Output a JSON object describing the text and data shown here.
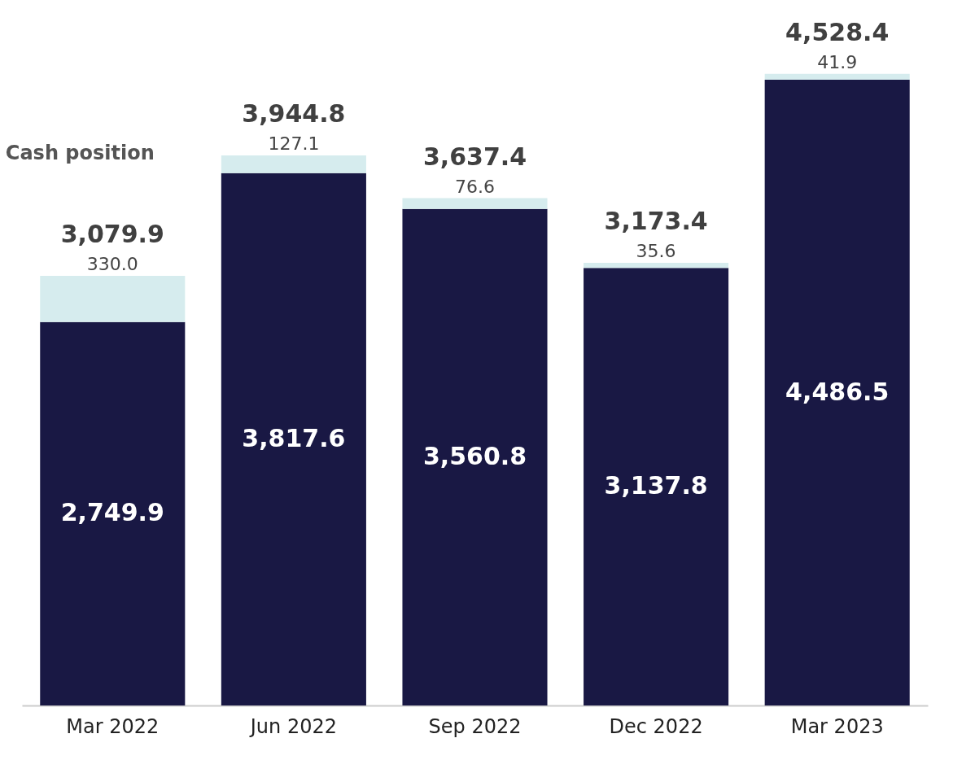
{
  "chart_data": {
    "type": "bar",
    "stacked": true,
    "categories": [
      "Mar 2022",
      "Jun 2022",
      "Sep 2022",
      "Dec 2022",
      "Mar 2023"
    ],
    "series": [
      {
        "color": "#191844",
        "values": [
          2749.9,
          3817.6,
          3560.8,
          3137.8,
          4486.5
        ],
        "value_labels": [
          "2,749.9",
          "3,817.6",
          "3,560.8",
          "3,137.8",
          "4,486.5"
        ]
      },
      {
        "name": "Cash position",
        "color": "#d6ecee",
        "values": [
          330.0,
          127.1,
          76.6,
          35.6,
          41.9
        ],
        "value_labels": [
          "330.0",
          "127.1",
          "76.6",
          "35.6",
          "41.9"
        ]
      }
    ],
    "totals": [
      "3,079.9",
      "3,944.8",
      "3,637.4",
      "3,173.4",
      "4,528.4"
    ]
  }
}
